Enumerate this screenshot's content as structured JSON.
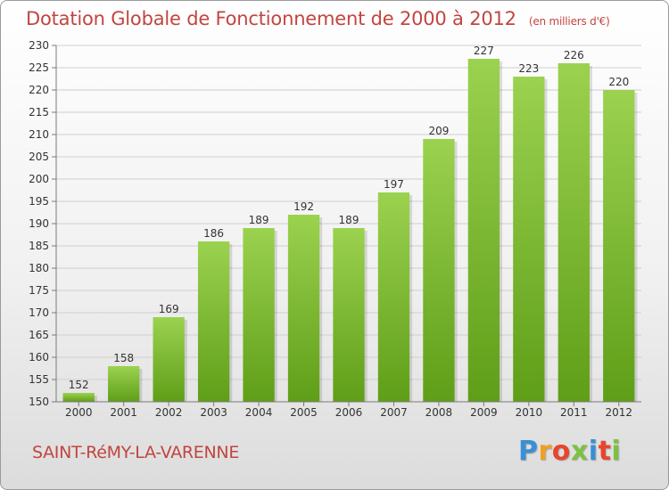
{
  "header": {
    "title": "Dotation Globale de Fonctionnement de 2000 à 2012",
    "subtitle": "(en milliers d'€)"
  },
  "footer": {
    "commune": "SAINT-RéMY-LA-VARENNE",
    "logo_text": "Proxiti"
  },
  "colors": {
    "title": "#c2453f",
    "bar_top": "#9bd24f",
    "bar_bottom": "#5f9e18",
    "logo": [
      "#3a8fd6",
      "#f0a020",
      "#e8452c",
      "#7cc242",
      "#3a8fd6",
      "#e8452c",
      "#7cc242"
    ]
  },
  "chart_data": {
    "type": "bar",
    "categories": [
      "2000",
      "2001",
      "2002",
      "2003",
      "2004",
      "2005",
      "2006",
      "2007",
      "2008",
      "2009",
      "2010",
      "2011",
      "2012"
    ],
    "values": [
      152,
      158,
      169,
      186,
      189,
      192,
      189,
      197,
      209,
      227,
      223,
      226,
      220
    ],
    "ylim": [
      150,
      230
    ],
    "yticks": [
      150,
      155,
      160,
      165,
      170,
      175,
      180,
      185,
      190,
      195,
      200,
      205,
      210,
      215,
      220,
      225,
      230
    ],
    "grid": true,
    "data_labels": true
  }
}
